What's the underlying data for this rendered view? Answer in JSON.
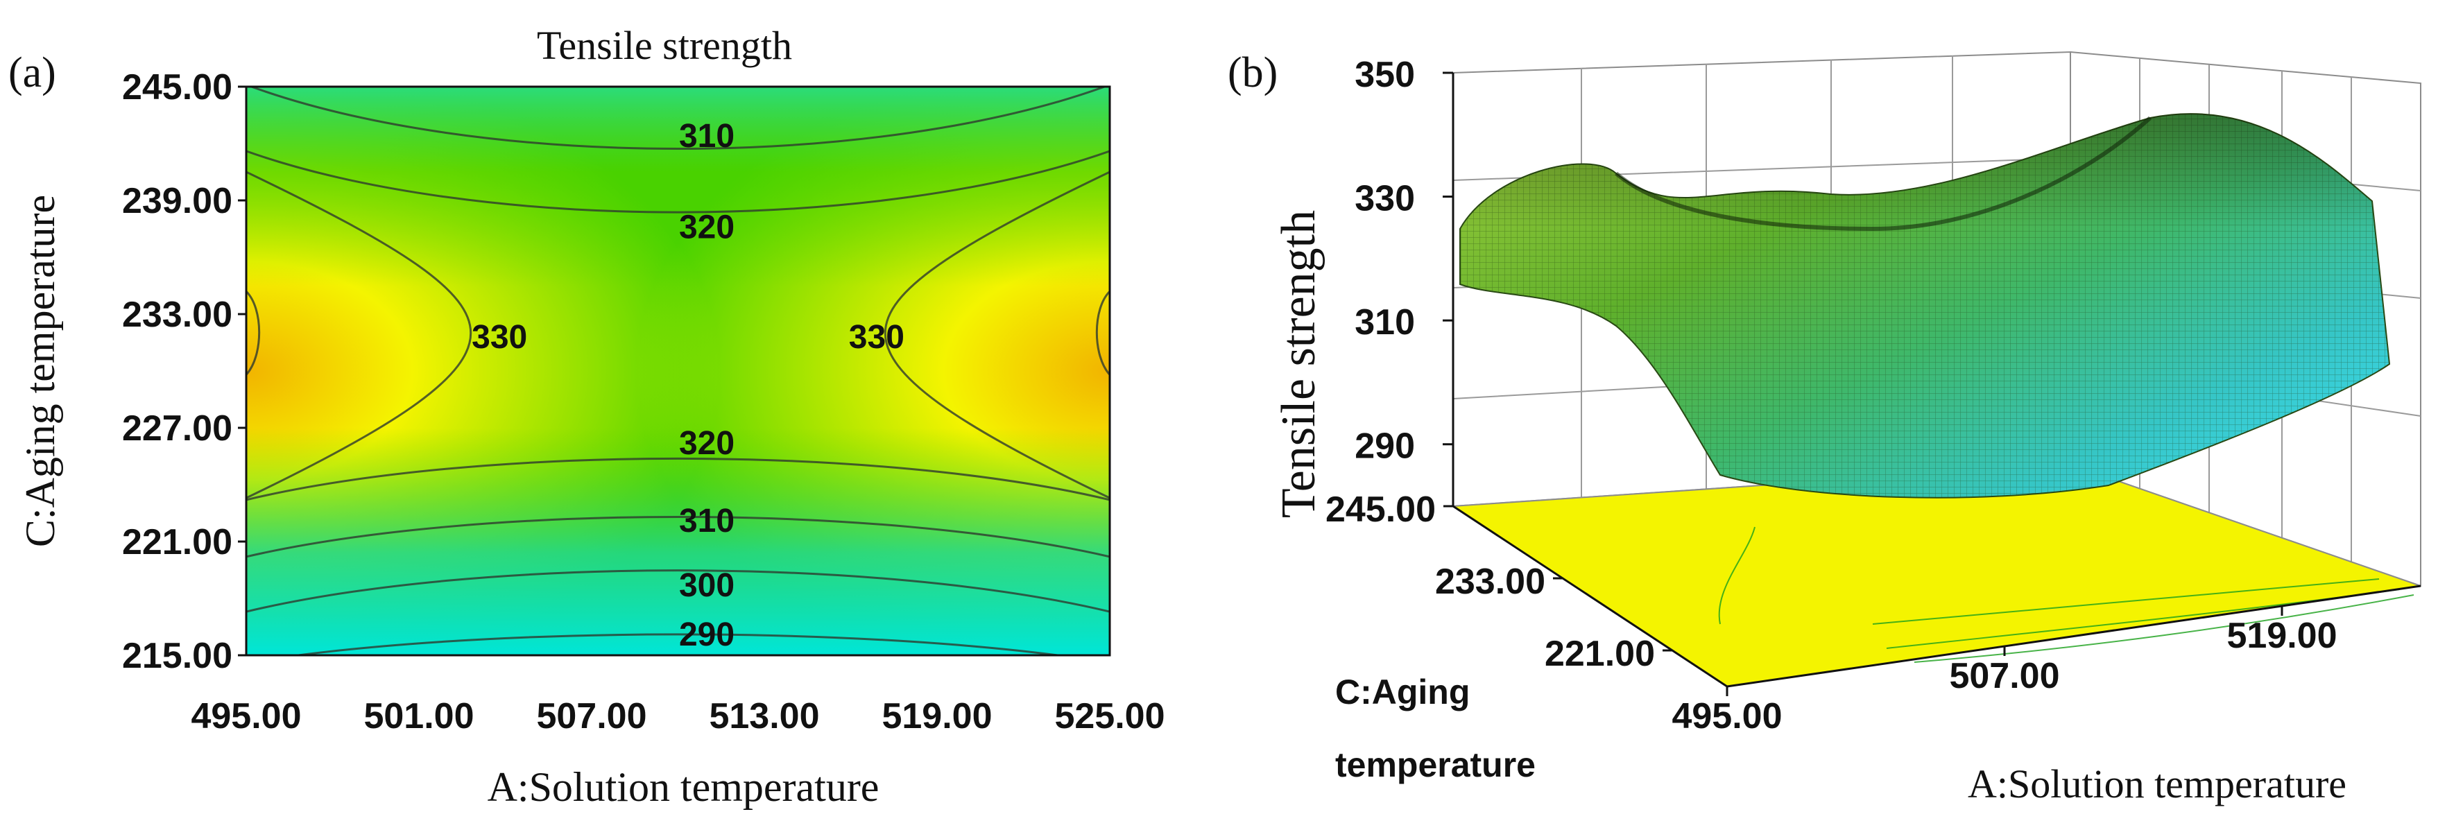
{
  "panel_a_label": "(a)",
  "panel_b_label": "(b)",
  "colors": {
    "low": "#00e6d8",
    "mid": "#49d200",
    "high": "#f4f400",
    "peak": "#f2b400",
    "contour": "#2e3a2e",
    "floor": "#f4f400"
  },
  "chart_data": [
    {
      "type": "contour",
      "title": "Tensile strength",
      "xlabel": "A:Solution temperature",
      "ylabel": "C:Aging temperature",
      "xlim": [
        495,
        525
      ],
      "ylim": [
        215,
        245
      ],
      "x_ticks": [
        "495.00",
        "501.00",
        "507.00",
        "513.00",
        "519.00",
        "525.00"
      ],
      "y_ticks": [
        "215.00",
        "221.00",
        "227.00",
        "233.00",
        "239.00",
        "245.00"
      ],
      "contour_levels": [
        290,
        300,
        310,
        320,
        330
      ],
      "contour_labels": [
        {
          "text": "310",
          "x": 511,
          "y": 242.4
        },
        {
          "text": "320",
          "x": 511,
          "y": 237.6
        },
        {
          "text": "330",
          "x": 503.8,
          "y": 231.8
        },
        {
          "text": "330",
          "x": 516.9,
          "y": 231.8
        },
        {
          "text": "320",
          "x": 511,
          "y": 226.2
        },
        {
          "text": "310",
          "x": 511,
          "y": 222.1
        },
        {
          "text": "300",
          "x": 511,
          "y": 218.7
        },
        {
          "text": "290",
          "x": 511,
          "y": 216.1
        }
      ]
    },
    {
      "type": "surface3d",
      "zlabel": "Tensile strength",
      "xlabel": "A:Solution temperature",
      "ylabel_line1": "C:Aging",
      "ylabel_line2": "temperature",
      "xlim": [
        495,
        525
      ],
      "ylim": [
        215,
        245
      ],
      "zlim": [
        280,
        350
      ],
      "x_ticks": [
        "495.00",
        "507.00",
        "519.00"
      ],
      "y_ticks": [
        "245.00",
        "233.00",
        "221.00"
      ],
      "z_ticks": [
        "350",
        "330",
        "310",
        "290"
      ]
    }
  ]
}
